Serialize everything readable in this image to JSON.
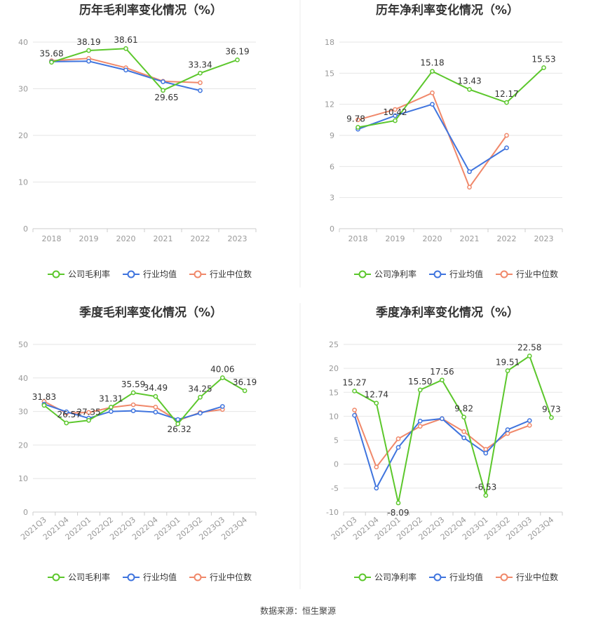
{
  "source_label": "数据来源：恒生聚源",
  "colors": {
    "company": "#5cc72c",
    "avg": "#3f74de",
    "median": "#f0886a",
    "axis": "#999999",
    "grid": "#e6e6e6",
    "title": "#333333"
  },
  "chart_data": [
    {
      "type": "line",
      "title": "历年毛利率变化情况（%）",
      "categories": [
        "2018",
        "2019",
        "2020",
        "2021",
        "2022",
        "2023"
      ],
      "ylim": [
        0,
        40
      ],
      "yticks": [
        0,
        10,
        20,
        30,
        40
      ],
      "grid": true,
      "legend_position": "bottom",
      "series": [
        {
          "name": "公司毛利率",
          "values": [
            35.68,
            38.19,
            38.61,
            29.65,
            33.34,
            36.19
          ],
          "color": "#5cc72c"
        },
        {
          "name": "行业均值",
          "values": [
            35.8,
            35.9,
            34.0,
            31.5,
            29.6,
            null
          ],
          "color": "#3f74de"
        },
        {
          "name": "行业中位数",
          "values": [
            36.0,
            36.5,
            34.5,
            31.6,
            31.3,
            null
          ],
          "color": "#f0886a"
        }
      ],
      "data_labels": [
        "35.68",
        "38.19",
        "38.61",
        "29.65",
        "33.34",
        "36.19"
      ]
    },
    {
      "type": "line",
      "title": "历年净利率变化情况（%）",
      "categories": [
        "2018",
        "2019",
        "2020",
        "2021",
        "2022",
        "2023"
      ],
      "ylim": [
        0,
        18
      ],
      "yticks": [
        0,
        3,
        6,
        9,
        12,
        15,
        18
      ],
      "grid": true,
      "legend_position": "bottom",
      "series": [
        {
          "name": "公司净利率",
          "values": [
            9.78,
            10.42,
            15.18,
            13.43,
            12.17,
            15.53
          ],
          "color": "#5cc72c"
        },
        {
          "name": "行业均值",
          "values": [
            9.6,
            10.9,
            12.0,
            5.5,
            7.8,
            null
          ],
          "color": "#3f74de"
        },
        {
          "name": "行业中位数",
          "values": [
            10.5,
            11.5,
            13.1,
            4.0,
            9.0,
            null
          ],
          "color": "#f0886a"
        }
      ],
      "data_labels": [
        "9.78",
        "10.42",
        "15.18",
        "13.43",
        "12.17",
        "15.53"
      ]
    },
    {
      "type": "line",
      "title": "季度毛利率变化情况（%）",
      "categories": [
        "2021Q3",
        "2021Q4",
        "2022Q1",
        "2022Q2",
        "2022Q3",
        "2022Q4",
        "2023Q1",
        "2023Q2",
        "2023Q3",
        "2023Q4"
      ],
      "ylim": [
        0,
        50
      ],
      "yticks": [
        0,
        10,
        20,
        30,
        40,
        50
      ],
      "grid": true,
      "legend_position": "bottom",
      "series": [
        {
          "name": "公司毛利率",
          "values": [
            31.83,
            26.57,
            27.35,
            31.31,
            35.59,
            34.49,
            26.32,
            34.25,
            40.06,
            36.19
          ],
          "color": "#5cc72c"
        },
        {
          "name": "行业均值",
          "values": [
            32.2,
            29.9,
            28.0,
            30.0,
            30.2,
            29.8,
            27.6,
            29.5,
            31.5,
            null
          ],
          "color": "#3f74de"
        },
        {
          "name": "行业中位数",
          "values": [
            33.0,
            29.5,
            29.7,
            31.2,
            32.0,
            31.3,
            27.3,
            29.7,
            30.6,
            null
          ],
          "color": "#f0886a"
        }
      ],
      "data_labels": [
        "31.83",
        "26.57",
        "27.35",
        "31.31",
        "35.59",
        "34.49",
        "26.32",
        "34.25",
        "40.06",
        "36.19"
      ]
    },
    {
      "type": "line",
      "title": "季度净利率变化情况（%）",
      "categories": [
        "2021Q3",
        "2021Q4",
        "2022Q1",
        "2022Q2",
        "2022Q3",
        "2022Q4",
        "2023Q1",
        "2023Q2",
        "2023Q3",
        "2023Q4"
      ],
      "ylim": [
        -10,
        25
      ],
      "yticks": [
        -10,
        -5,
        0,
        5,
        10,
        15,
        20,
        25
      ],
      "grid": true,
      "legend_position": "bottom",
      "series": [
        {
          "name": "公司净利率",
          "values": [
            15.27,
            12.74,
            -8.09,
            15.5,
            17.56,
            9.82,
            -6.53,
            19.51,
            22.58,
            9.73
          ],
          "color": "#5cc72c"
        },
        {
          "name": "行业均值",
          "values": [
            10.2,
            -5.0,
            3.5,
            9.0,
            9.5,
            5.5,
            2.3,
            7.2,
            9.1,
            null
          ],
          "color": "#3f74de"
        },
        {
          "name": "行业中位数",
          "values": [
            11.3,
            -0.6,
            5.3,
            7.9,
            9.5,
            6.8,
            3.1,
            6.4,
            8.1,
            null
          ],
          "color": "#f0886a"
        }
      ],
      "data_labels": [
        "15.27",
        "12.74",
        "-8.09",
        "15.50",
        "17.56",
        "9.82",
        "-6.53",
        "19.51",
        "22.58",
        "9.73"
      ]
    }
  ]
}
